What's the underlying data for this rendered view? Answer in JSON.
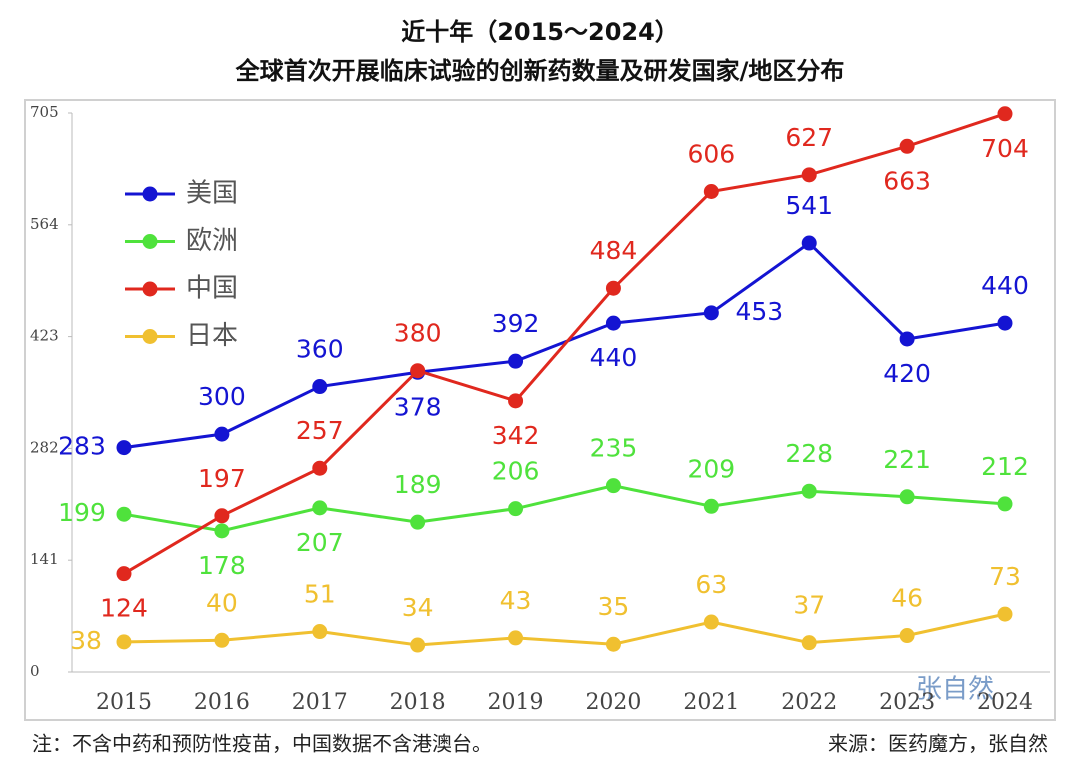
{
  "chart_data": {
    "type": "line",
    "title": "近十年（2015～2024）",
    "subtitle": "全球首次开展临床试验的创新药数量及研发国家/地区分布",
    "categories": [
      "2015",
      "2016",
      "2017",
      "2018",
      "2019",
      "2020",
      "2021",
      "2022",
      "2023",
      "2024"
    ],
    "series": [
      {
        "name": "美国",
        "color": "#1414d2",
        "values": [
          283,
          300,
          360,
          378,
          392,
          440,
          453,
          541,
          420,
          440
        ]
      },
      {
        "name": "欧洲",
        "color": "#4fe23c",
        "values": [
          199,
          178,
          207,
          189,
          206,
          235,
          209,
          228,
          221,
          212
        ]
      },
      {
        "name": "中国",
        "color": "#e0281e",
        "values": [
          124,
          197,
          257,
          380,
          342,
          484,
          606,
          627,
          663,
          704
        ]
      },
      {
        "name": "日本",
        "color": "#f0c030",
        "values": [
          38,
          40,
          51,
          34,
          43,
          35,
          63,
          37,
          46,
          73
        ]
      }
    ],
    "ylim": [
      0,
      705
    ],
    "yticks": [
      0,
      141,
      282,
      423,
      564,
      705
    ],
    "legend": "upper left",
    "watermark": "张自然",
    "note": "注：不含中药和预防性疫苗，中国数据不含港澳台。",
    "source": "来源：医药魔方，张自然"
  }
}
